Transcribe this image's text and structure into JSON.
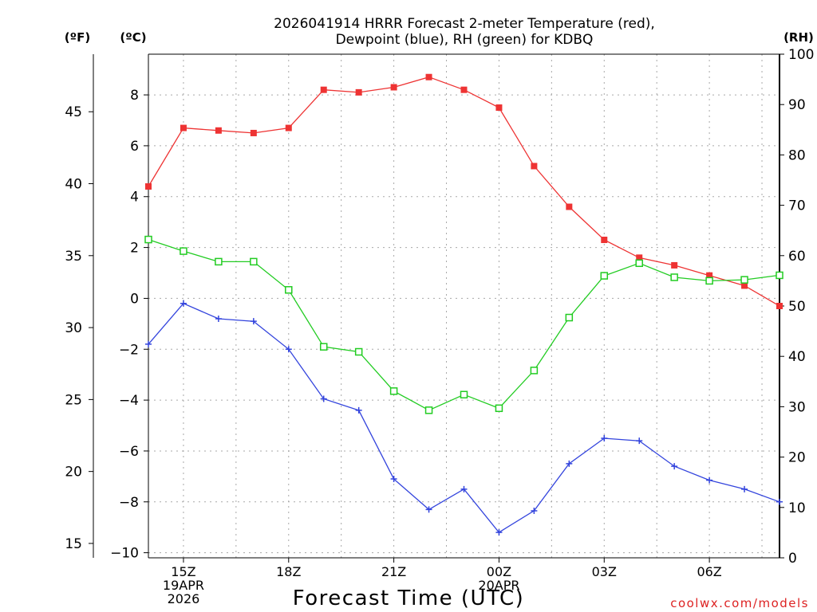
{
  "chart_data": {
    "type": "line",
    "title_line1": "2026041914 HRRR Forecast 2-meter Temperature (red),",
    "title_line2": "Dewpoint (blue), RH (green) for KDBQ",
    "xlabel": "Forecast Time (UTC)",
    "credit": "coolwx.com/models",
    "axis_label_f": "(ºF)",
    "axis_label_c": "(ºC)",
    "axis_label_rh": "(RH)",
    "ylim_c": [
      -10.2,
      9.6
    ],
    "ylim_f": [
      14,
      49
    ],
    "ylim_rh": [
      0,
      100
    ],
    "x_hours": [
      14,
      15,
      16,
      17,
      18,
      19,
      20,
      21,
      22,
      23,
      24,
      25,
      26,
      27,
      28,
      29,
      30,
      31,
      32
    ],
    "x_range": [
      14,
      32
    ],
    "y_ticks_c": [
      8,
      6,
      4,
      2,
      0,
      -2,
      -4,
      -6,
      -8,
      -10
    ],
    "y_tick_labels_c": [
      "8",
      "6",
      "4",
      "2",
      "0",
      "−2",
      "−4",
      "−6",
      "−8",
      "−10"
    ],
    "y_ticks_f": [
      45,
      40,
      35,
      30,
      25,
      20,
      15
    ],
    "y_tick_labels_f": [
      "45",
      "40",
      "35",
      "30",
      "25",
      "20",
      "15"
    ],
    "y_ticks_rh": [
      100,
      90,
      80,
      70,
      60,
      50,
      40,
      30,
      20,
      10,
      0
    ],
    "y_tick_labels_rh": [
      "100",
      "90",
      "80",
      "70",
      "60",
      "50",
      "40",
      "30",
      "20",
      "10",
      "0"
    ],
    "x_ticks": [
      {
        "hour": 15,
        "lines": [
          "15Z",
          "19APR",
          "2026"
        ]
      },
      {
        "hour": 18,
        "lines": [
          "18Z"
        ]
      },
      {
        "hour": 21,
        "lines": [
          "21Z"
        ]
      },
      {
        "hour": 24,
        "lines": [
          "00Z",
          "20APR"
        ]
      },
      {
        "hour": 27,
        "lines": [
          "03Z"
        ]
      },
      {
        "hour": 30,
        "lines": [
          "06Z"
        ]
      }
    ],
    "series": [
      {
        "name": "Temperature",
        "unit": "C",
        "color": "#ee3333",
        "marker": "filled-square",
        "values": [
          4.4,
          6.7,
          6.6,
          6.5,
          6.7,
          8.2,
          8.1,
          8.3,
          8.7,
          8.2,
          7.5,
          5.2,
          3.6,
          2.3,
          1.6,
          1.3,
          0.9,
          0.5,
          -0.3
        ]
      },
      {
        "name": "Dewpoint",
        "unit": "C",
        "color": "#3344dd",
        "marker": "plus",
        "values": [
          -1.8,
          -0.2,
          -0.8,
          -0.9,
          -2.0,
          -3.95,
          -4.4,
          -7.1,
          -8.3,
          -7.5,
          -9.2,
          -8.35,
          -6.5,
          -5.5,
          -5.6,
          -6.6,
          -7.15,
          -7.5,
          -8.0
        ]
      },
      {
        "name": "RH",
        "unit": "%",
        "color": "#22cc22",
        "marker": "open-square",
        "values": [
          63.2,
          60.9,
          58.8,
          58.8,
          53.2,
          41.9,
          40.9,
          33.1,
          29.3,
          32.4,
          29.7,
          37.2,
          47.7,
          56.0,
          58.5,
          55.7,
          55.0,
          55.2,
          56.1
        ]
      }
    ]
  }
}
